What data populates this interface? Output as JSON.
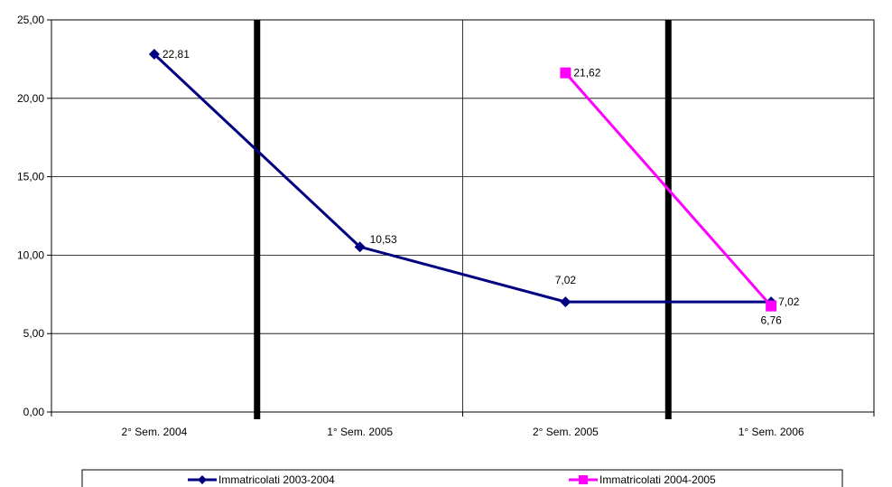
{
  "chart_data": {
    "type": "line",
    "title": "",
    "xlabel": "",
    "ylabel": "",
    "categories": [
      "2° Sem. 2004",
      "1° Sem. 2005",
      "2° Sem. 2005",
      "1° Sem. 2006"
    ],
    "ylim": [
      0,
      25
    ],
    "yticks": [
      "0,00",
      "5,00",
      "10,00",
      "15,00",
      "20,00",
      "25,00"
    ],
    "grid": true,
    "legend_position": "bottom",
    "series": [
      {
        "name": "Immatricolati 2003-2004",
        "color": "#000080",
        "marker": "diamond",
        "values": [
          22.81,
          10.53,
          7.02,
          7.02
        ],
        "labels": [
          "22,81",
          "10,53",
          "7,02",
          "7,02"
        ]
      },
      {
        "name": "Immatricolati 2004-2005",
        "color": "#ff00ff",
        "marker": "square",
        "values": [
          null,
          null,
          21.62,
          6.76
        ],
        "labels": [
          "",
          "",
          "21,62",
          "6,76"
        ]
      }
    ],
    "separators_after_category": [
      0,
      2
    ]
  }
}
